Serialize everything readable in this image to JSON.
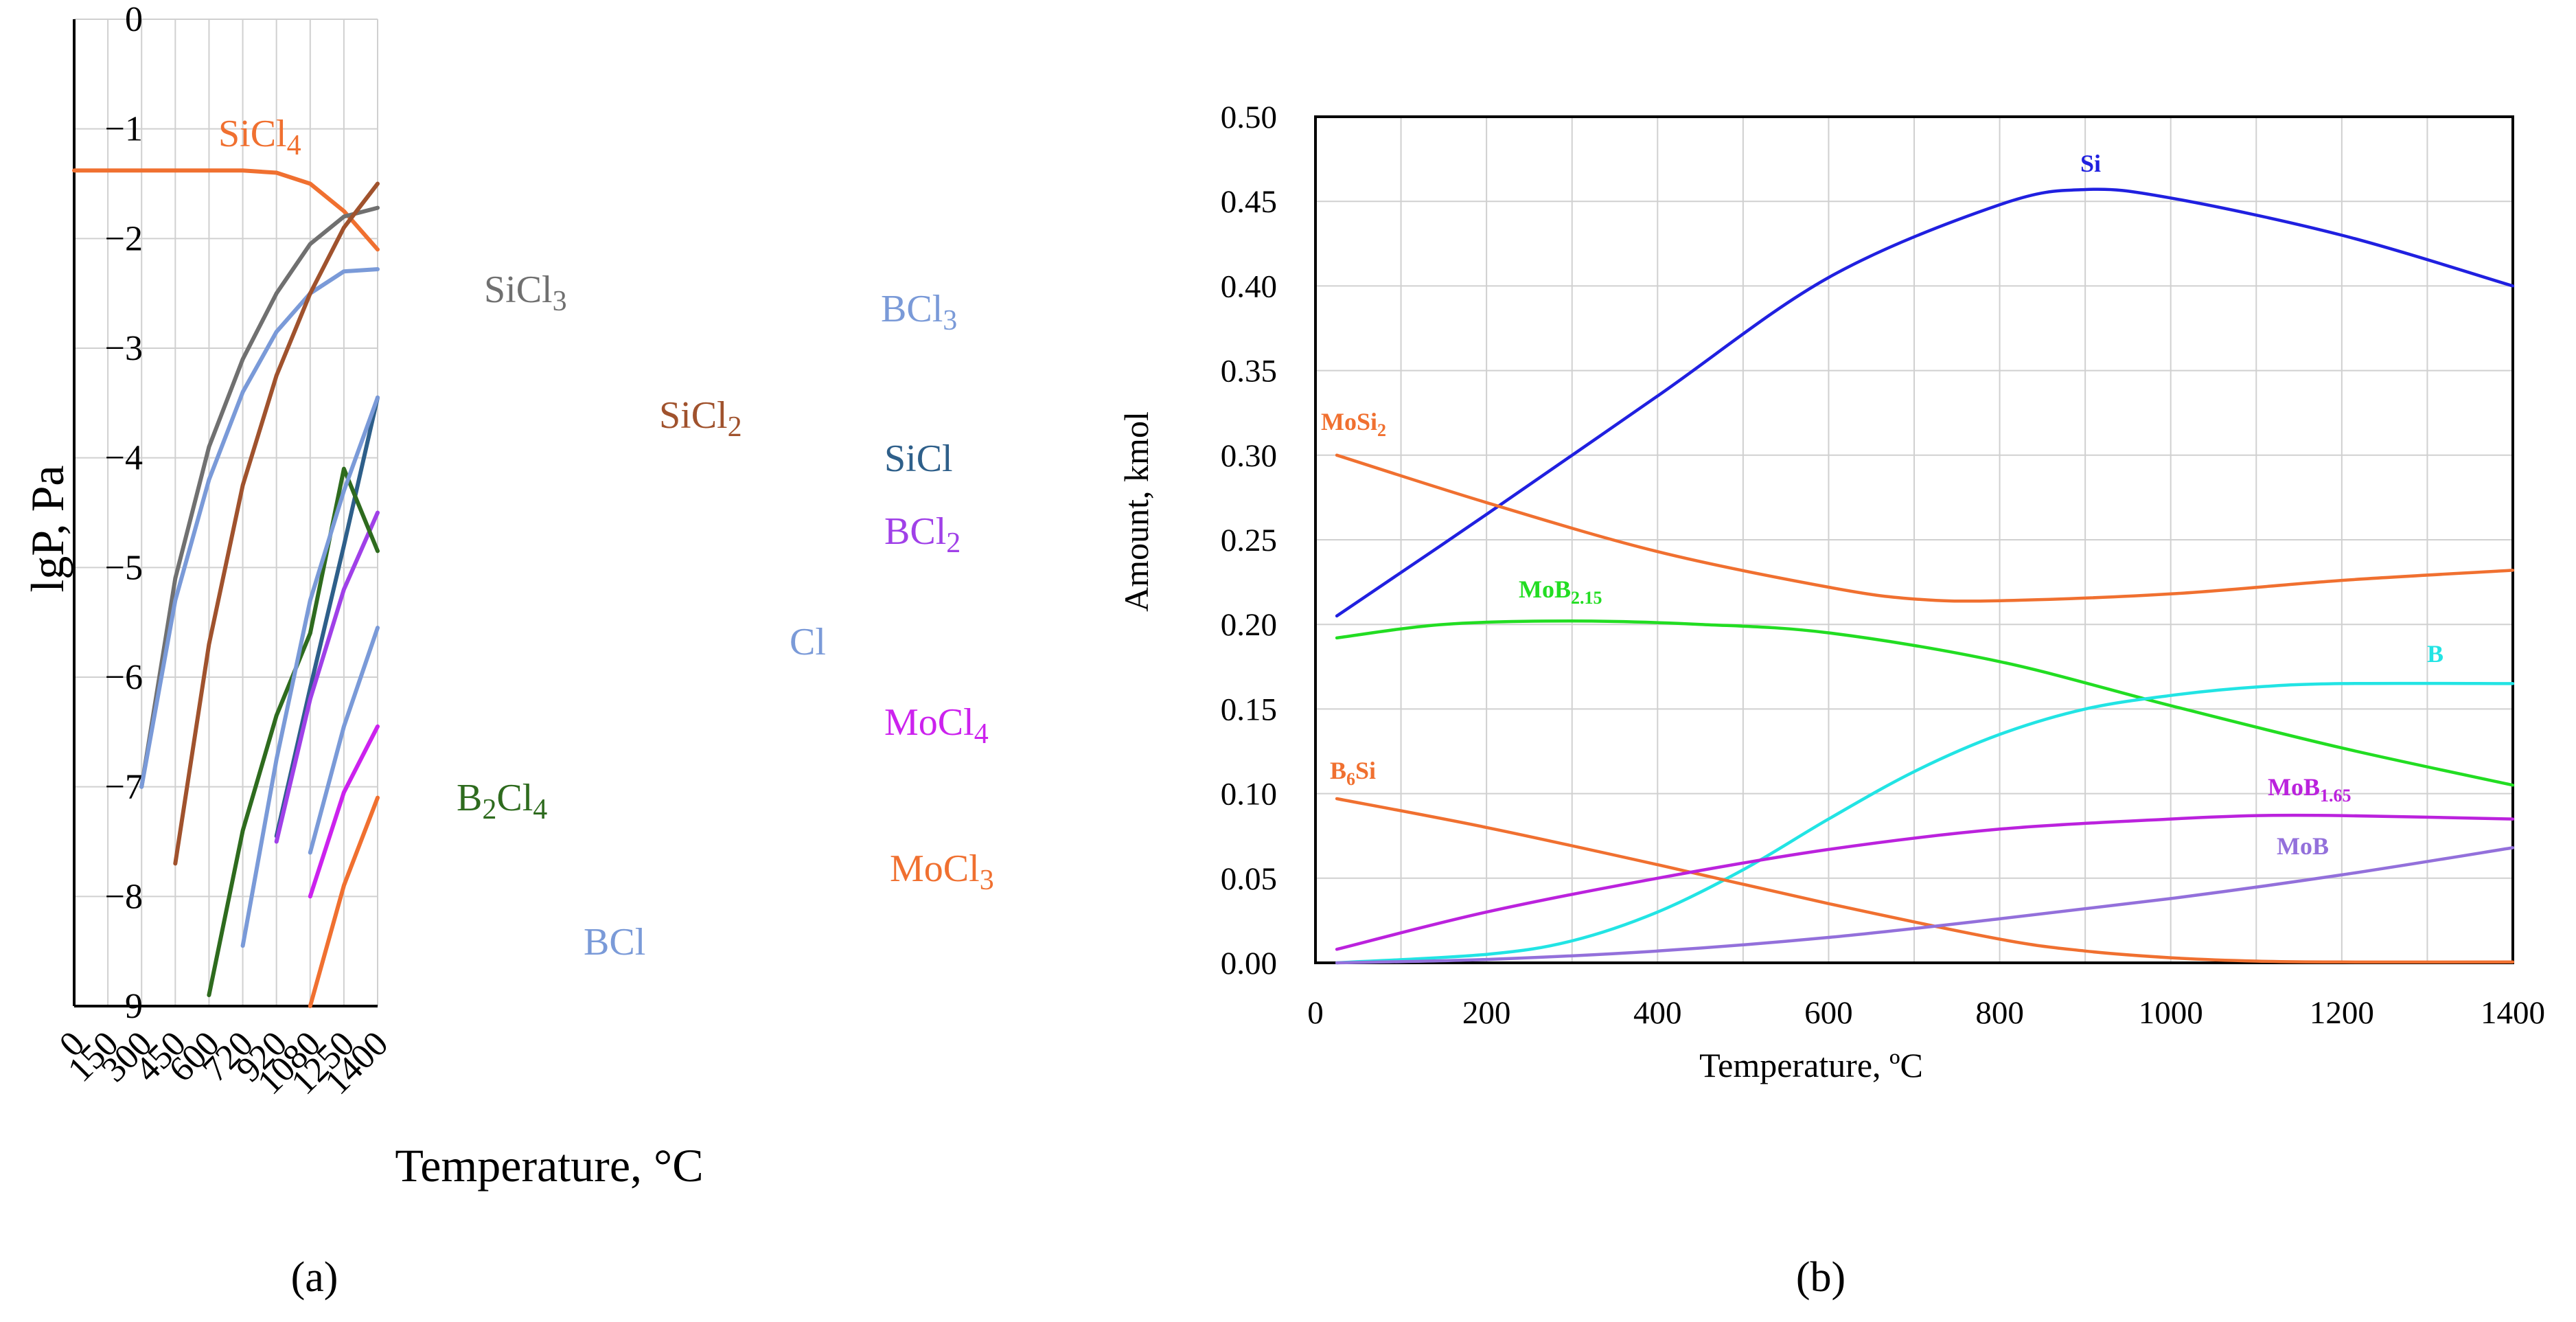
{
  "panels": {
    "a": {
      "label": "(a)"
    },
    "b": {
      "label": "(b)"
    }
  },
  "chart_data": [
    {
      "type": "line",
      "ylabel": "lgP, Pa",
      "xlabel": "Temperature, °C",
      "categories": [
        "0",
        "150",
        "300",
        "450",
        "600",
        "720",
        "920",
        "1080",
        "1250",
        "1400"
      ],
      "yticks": [
        0,
        -1,
        -2,
        -3,
        -4,
        -5,
        -6,
        -7,
        -8,
        -9
      ],
      "ytick_labels": [
        "0",
        "−1",
        "−2",
        "−3",
        "−4",
        "−5",
        "−6",
        "−7",
        "−8",
        "−9"
      ],
      "ylim": [
        -9,
        0
      ],
      "grid": true,
      "series": [
        {
          "name": "SiCl4",
          "label_main": "SiCl",
          "label_sub": "4",
          "color": "#f07030",
          "points": [
            [
              0,
              -1.38
            ],
            [
              1,
              -1.38
            ],
            [
              2,
              -1.38
            ],
            [
              3,
              -1.38
            ],
            [
              4,
              -1.38
            ],
            [
              5,
              -1.38
            ],
            [
              6,
              -1.4
            ],
            [
              7,
              -1.5
            ],
            [
              8,
              -1.75
            ],
            [
              9,
              -2.1
            ]
          ]
        },
        {
          "name": "SiCl3",
          "label_main": "SiCl",
          "label_sub": "3",
          "color": "#707070",
          "points": [
            [
              2,
              -7.0
            ],
            [
              3,
              -5.1
            ],
            [
              4,
              -3.9
            ],
            [
              5,
              -3.1
            ],
            [
              6,
              -2.5
            ],
            [
              7,
              -2.05
            ],
            [
              8,
              -1.8
            ],
            [
              9,
              -1.72
            ]
          ]
        },
        {
          "name": "BCl3",
          "label_main": "BCl",
          "label_sub": "3",
          "color": "#7a9ad8",
          "points": [
            [
              2,
              -7.0
            ],
            [
              3,
              -5.3
            ],
            [
              4,
              -4.2
            ],
            [
              5,
              -3.4
            ],
            [
              6,
              -2.85
            ],
            [
              7,
              -2.5
            ],
            [
              8,
              -2.3
            ],
            [
              9,
              -2.28
            ]
          ]
        },
        {
          "name": "SiCl2",
          "label_main": "SiCl",
          "label_sub": "2",
          "color": "#a0522d",
          "points": [
            [
              3,
              -7.7
            ],
            [
              4,
              -5.7
            ],
            [
              5,
              -4.25
            ],
            [
              6,
              -3.25
            ],
            [
              7,
              -2.5
            ],
            [
              8,
              -1.9
            ],
            [
              9,
              -1.5
            ]
          ]
        },
        {
          "name": "SiCl",
          "label_main": "SiCl",
          "label_sub": "",
          "color": "#2e5f8a",
          "points": [
            [
              6,
              -7.45
            ],
            [
              7,
              -6.1
            ],
            [
              8,
              -4.8
            ],
            [
              9,
              -3.45
            ]
          ]
        },
        {
          "name": "BCl2",
          "label_main": "BCl",
          "label_sub": "2",
          "color": "#a040e8",
          "points": [
            [
              6,
              -7.5
            ],
            [
              7,
              -6.2
            ],
            [
              8,
              -5.2
            ],
            [
              9,
              -4.5
            ]
          ]
        },
        {
          "name": "B2Cl4",
          "label_main": "B",
          "label_sub": "2",
          "label_main2": "Cl",
          "label_sub2": "4",
          "color": "#2e6b1e",
          "points": [
            [
              4,
              -8.9
            ],
            [
              5,
              -7.4
            ],
            [
              6,
              -6.35
            ],
            [
              7,
              -5.6
            ],
            [
              8,
              -4.1
            ],
            [
              9,
              -4.85
            ]
          ]
        },
        {
          "name": "BCl",
          "label_main": "BCl",
          "label_sub": "",
          "color": "#7a9ad8",
          "points": [
            [
              5,
              -8.45
            ],
            [
              6,
              -6.75
            ],
            [
              7,
              -5.3
            ],
            [
              8,
              -4.3
            ],
            [
              9,
              -3.45
            ]
          ]
        },
        {
          "name": "Cl",
          "label_main": "Cl",
          "label_sub": "",
          "color": "#7a9ad8",
          "points": [
            [
              7,
              -7.6
            ],
            [
              8,
              -6.45
            ],
            [
              9,
              -5.55
            ]
          ]
        },
        {
          "name": "MoCl4",
          "label_main": "MoCl",
          "label_sub": "4",
          "color": "#cc22ee",
          "points": [
            [
              7,
              -8.0
            ],
            [
              8,
              -7.05
            ],
            [
              9,
              -6.45
            ]
          ]
        },
        {
          "name": "MoCl3",
          "label_main": "MoCl",
          "label_sub": "3",
          "color": "#f07030",
          "points": [
            [
              7,
              -9.0
            ],
            [
              8,
              -7.9
            ],
            [
              9,
              -7.1
            ]
          ]
        }
      ]
    },
    {
      "type": "line",
      "ylabel": "Amount, kmol",
      "xlabel": "Temperature, ºC",
      "xlim": [
        0,
        1400
      ],
      "ylim": [
        0,
        0.5
      ],
      "xticks": [
        0,
        200,
        400,
        600,
        800,
        1000,
        1200,
        1400
      ],
      "yticks": [
        0.0,
        0.05,
        0.1,
        0.15,
        0.2,
        0.25,
        0.3,
        0.35,
        0.4,
        0.45,
        0.5
      ],
      "ytick_labels": [
        "0.00",
        "0.05",
        "0.10",
        "0.15",
        "0.20",
        "0.25",
        "0.30",
        "0.35",
        "0.40",
        "0.45",
        "0.50"
      ],
      "grid": true,
      "series": [
        {
          "name": "Si",
          "label_main": "Si",
          "label_sub": "",
          "color": "#2020e0",
          "points": [
            [
              25,
              0.205
            ],
            [
              200,
              0.265
            ],
            [
              400,
              0.335
            ],
            [
              600,
              0.405
            ],
            [
              800,
              0.448
            ],
            [
              900,
              0.457
            ],
            [
              1000,
              0.452
            ],
            [
              1200,
              0.43
            ],
            [
              1400,
              0.4
            ]
          ]
        },
        {
          "name": "MoSi2",
          "label_main": "MoSi",
          "label_sub": "2",
          "color": "#f07030",
          "points": [
            [
              25,
              0.3
            ],
            [
              200,
              0.272
            ],
            [
              400,
              0.243
            ],
            [
              600,
              0.222
            ],
            [
              700,
              0.215
            ],
            [
              800,
              0.214
            ],
            [
              1000,
              0.218
            ],
            [
              1200,
              0.226
            ],
            [
              1400,
              0.232
            ]
          ]
        },
        {
          "name": "MoB2.15",
          "label_main": "MoB",
          "label_sub": "2.15",
          "color": "#22dd22",
          "points": [
            [
              25,
              0.192
            ],
            [
              150,
              0.2
            ],
            [
              300,
              0.202
            ],
            [
              450,
              0.2
            ],
            [
              600,
              0.195
            ],
            [
              800,
              0.178
            ],
            [
              1000,
              0.152
            ],
            [
              1200,
              0.127
            ],
            [
              1400,
              0.105
            ]
          ]
        },
        {
          "name": "B",
          "label_main": "B",
          "label_sub": "",
          "color": "#22e4e4",
          "points": [
            [
              25,
              0.0
            ],
            [
              200,
              0.005
            ],
            [
              300,
              0.013
            ],
            [
              400,
              0.03
            ],
            [
              500,
              0.055
            ],
            [
              600,
              0.085
            ],
            [
              700,
              0.113
            ],
            [
              800,
              0.135
            ],
            [
              900,
              0.15
            ],
            [
              1000,
              0.158
            ],
            [
              1100,
              0.163
            ],
            [
              1200,
              0.165
            ],
            [
              1400,
              0.165
            ]
          ]
        },
        {
          "name": "B6Si",
          "label_main": "B",
          "label_sub": "6",
          "label_main2": "Si",
          "label_sub2": "",
          "color": "#f07030",
          "points": [
            [
              25,
              0.097
            ],
            [
              200,
              0.08
            ],
            [
              400,
              0.058
            ],
            [
              600,
              0.035
            ],
            [
              800,
              0.014
            ],
            [
              900,
              0.007
            ],
            [
              1000,
              0.003
            ],
            [
              1100,
              0.001
            ],
            [
              1200,
              0.0005
            ],
            [
              1400,
              0.0005
            ]
          ]
        },
        {
          "name": "MoB1.65",
          "label_main": "MoB",
          "label_sub": "1.65",
          "color": "#bb22dd",
          "points": [
            [
              25,
              0.008
            ],
            [
              200,
              0.03
            ],
            [
              400,
              0.05
            ],
            [
              600,
              0.067
            ],
            [
              800,
              0.079
            ],
            [
              1000,
              0.085
            ],
            [
              1100,
              0.087
            ],
            [
              1200,
              0.087
            ],
            [
              1400,
              0.085
            ]
          ]
        },
        {
          "name": "MoB",
          "label_main": "MoB",
          "label_sub": "",
          "color": "#9370db",
          "points": [
            [
              25,
              0.0
            ],
            [
              200,
              0.002
            ],
            [
              400,
              0.007
            ],
            [
              600,
              0.015
            ],
            [
              800,
              0.026
            ],
            [
              1000,
              0.038
            ],
            [
              1200,
              0.052
            ],
            [
              1400,
              0.068
            ]
          ]
        }
      ]
    }
  ]
}
